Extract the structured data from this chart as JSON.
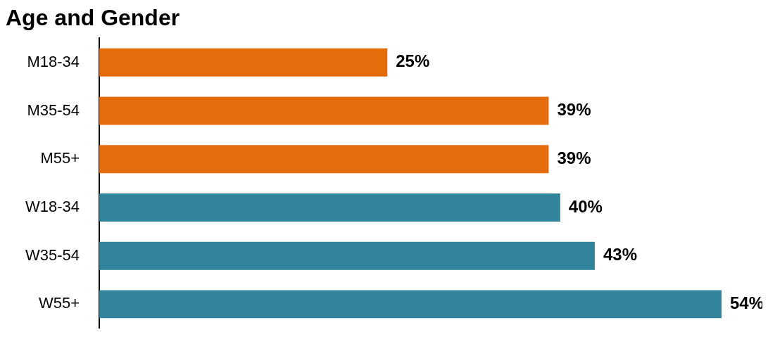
{
  "chart_data": {
    "type": "bar",
    "orientation": "horizontal",
    "title": "Age and Gender",
    "categories": [
      "M18-34",
      "M35-54",
      "M55+",
      "W18-34",
      "W35-54",
      "W55+"
    ],
    "values": [
      25,
      39,
      39,
      40,
      43,
      54
    ],
    "colors": [
      "#e46c0a",
      "#e46c0a",
      "#e46c0a",
      "#31849b",
      "#31849b",
      "#31849b"
    ],
    "value_labels": [
      "25%",
      "39%",
      "39%",
      "40%",
      "43%",
      "54%"
    ],
    "tick_labels": "y",
    "legend": false
  }
}
